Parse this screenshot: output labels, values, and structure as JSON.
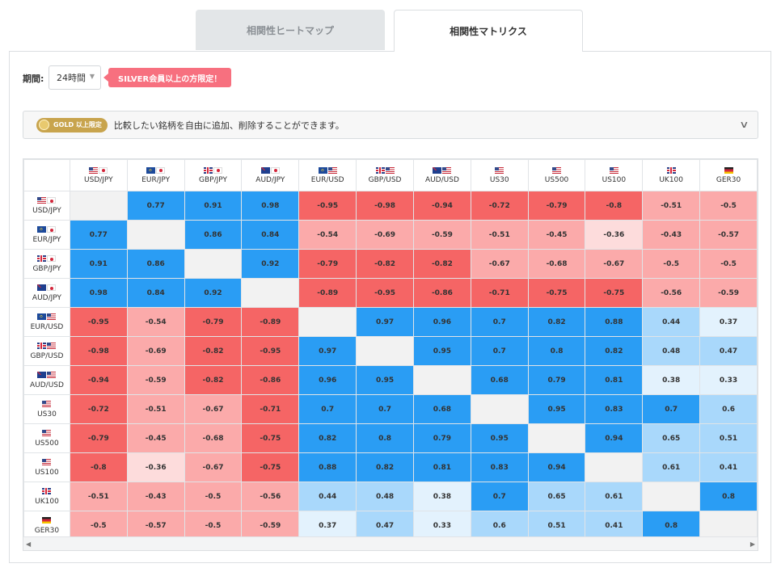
{
  "tabs": [
    {
      "label": "相関性ヒートマップ",
      "active": false
    },
    {
      "label": "相関性マトリクス",
      "active": true
    }
  ],
  "period": {
    "label": "期間:",
    "value": "24時間"
  },
  "silver_badge": "SILVER会員以上の方限定！",
  "gold": {
    "badge": "GOLD 以上限定",
    "text": "比較したい銘柄を自由に追加、削除することができます。"
  },
  "colors": {
    "blue_strong": "#2a9df4",
    "blue_mid": "#a9d8fb",
    "blue_light": "#e3f2fd",
    "red_strong": "#f56565",
    "red_mid": "#fbaaaa",
    "red_light": "#fddcdc",
    "diag": "#f2f2f2"
  },
  "matrix": {
    "symbols": [
      {
        "label": "USD/JPY",
        "flags": [
          "us",
          "jp"
        ]
      },
      {
        "label": "EUR/JPY",
        "flags": [
          "eu",
          "jp"
        ]
      },
      {
        "label": "GBP/JPY",
        "flags": [
          "uk",
          "jp"
        ]
      },
      {
        "label": "AUD/JPY",
        "flags": [
          "au",
          "jp"
        ]
      },
      {
        "label": "EUR/USD",
        "flags": [
          "eu",
          "us"
        ]
      },
      {
        "label": "GBP/USD",
        "flags": [
          "uk",
          "us"
        ]
      },
      {
        "label": "AUD/USD",
        "flags": [
          "au",
          "us"
        ]
      },
      {
        "label": "US30",
        "flags": [
          "us"
        ]
      },
      {
        "label": "US500",
        "flags": [
          "us"
        ]
      },
      {
        "label": "US100",
        "flags": [
          "us"
        ]
      },
      {
        "label": "UK100",
        "flags": [
          "uk"
        ]
      },
      {
        "label": "GER30",
        "flags": [
          "de"
        ]
      }
    ],
    "values": [
      [
        null,
        0.77,
        0.91,
        0.98,
        -0.95,
        -0.98,
        -0.94,
        -0.72,
        -0.79,
        -0.8,
        -0.51,
        -0.5
      ],
      [
        0.77,
        null,
        0.86,
        0.84,
        -0.54,
        -0.69,
        -0.59,
        -0.51,
        -0.45,
        -0.36,
        -0.43,
        -0.57
      ],
      [
        0.91,
        0.86,
        null,
        0.92,
        -0.79,
        -0.82,
        -0.82,
        -0.67,
        -0.68,
        -0.67,
        -0.5,
        -0.5
      ],
      [
        0.98,
        0.84,
        0.92,
        null,
        -0.89,
        -0.95,
        -0.86,
        -0.71,
        -0.75,
        -0.75,
        -0.56,
        -0.59
      ],
      [
        -0.95,
        -0.54,
        -0.79,
        -0.89,
        null,
        0.97,
        0.96,
        0.7,
        0.82,
        0.88,
        0.44,
        0.37
      ],
      [
        -0.98,
        -0.69,
        -0.82,
        -0.95,
        0.97,
        null,
        0.95,
        0.7,
        0.8,
        0.82,
        0.48,
        0.47
      ],
      [
        -0.94,
        -0.59,
        -0.82,
        -0.86,
        0.96,
        0.95,
        null,
        0.68,
        0.79,
        0.81,
        0.38,
        0.33
      ],
      [
        -0.72,
        -0.51,
        -0.67,
        -0.71,
        0.7,
        0.7,
        0.68,
        null,
        0.95,
        0.83,
        0.7,
        0.6
      ],
      [
        -0.79,
        -0.45,
        -0.68,
        -0.75,
        0.82,
        0.8,
        0.79,
        0.95,
        null,
        0.94,
        0.65,
        0.51
      ],
      [
        -0.8,
        -0.36,
        -0.67,
        -0.75,
        0.88,
        0.82,
        0.81,
        0.83,
        0.94,
        null,
        0.61,
        0.41
      ],
      [
        -0.51,
        -0.43,
        -0.5,
        -0.56,
        0.44,
        0.48,
        0.38,
        0.7,
        0.65,
        0.61,
        null,
        0.8
      ],
      [
        -0.5,
        -0.57,
        -0.5,
        -0.59,
        0.37,
        0.47,
        0.33,
        0.6,
        0.51,
        0.41,
        0.8,
        null
      ]
    ]
  }
}
